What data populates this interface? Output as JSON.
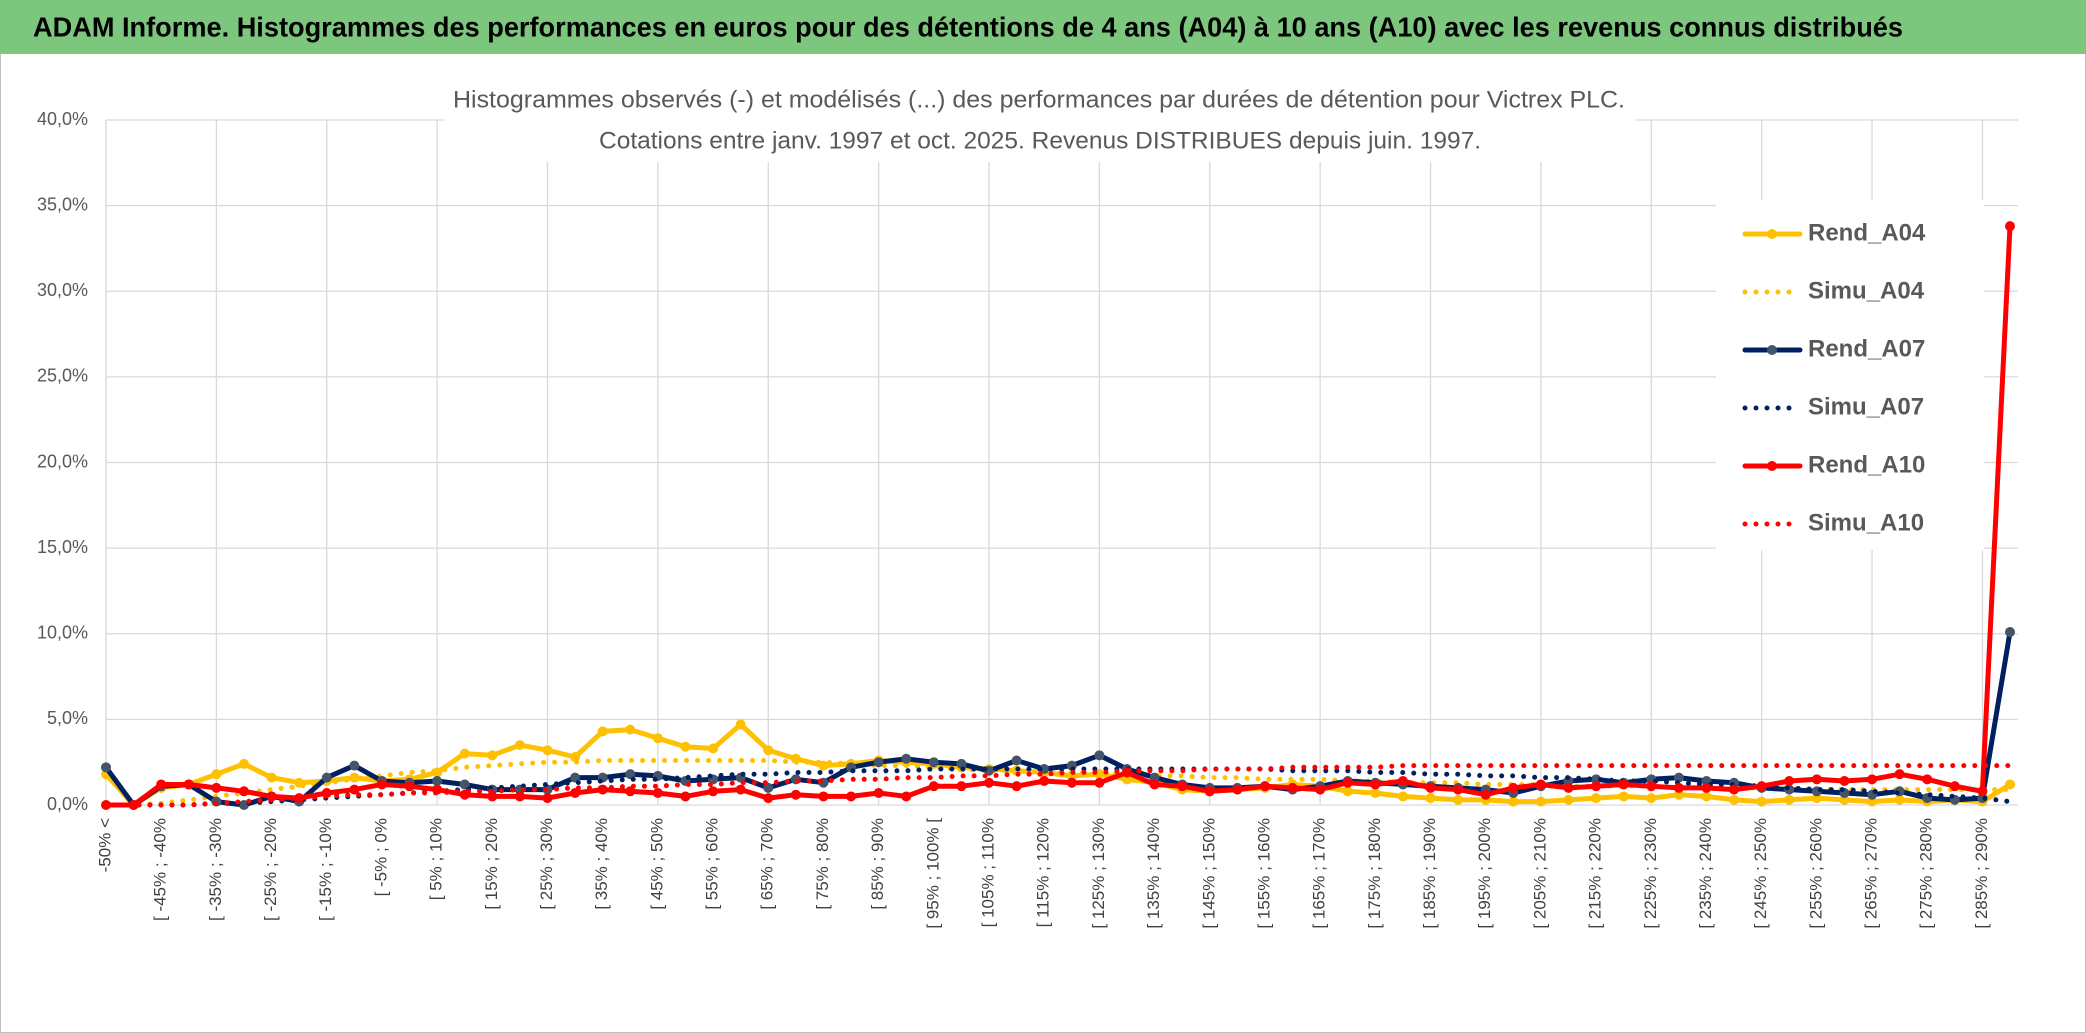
{
  "chart_data": {
    "type": "line",
    "header": "ADAM Informe. Histogrammes des performances en euros pour des détentions de 4 ans (A04) à 10 ans (A10) avec les revenus connus distribués",
    "title": "Histogrammes observés (-) et modélisés (...) des performances par durées de détention pour Victrex PLC.",
    "subtitle": "Cotations entre janv. 1997 et oct. 2025. Revenus DISTRIBUES depuis juin. 1997.",
    "categories": [
      "-50% <",
      null,
      "[ -45% ; -40%",
      null,
      "[ -35% ; -30%",
      null,
      "[ -25% ; -20%",
      null,
      "[ -15% ; -10%",
      null,
      "[ -5% ; 0%",
      null,
      "[ 5% ; 10%",
      null,
      "[ 15% ; 20%",
      null,
      "[ 25% ; 30%",
      null,
      "[ 35% ; 40%",
      null,
      "[ 45% ; 50%",
      null,
      "[ 55% ; 60%",
      null,
      "[ 65% ; 70%",
      null,
      "[ 75% ; 80%",
      null,
      "[ 85% ; 90%",
      null,
      "[ 95% ; 100% [",
      null,
      "[ 105% ; 110%",
      null,
      "[ 115% ; 120%",
      null,
      "[ 125% ; 130%",
      null,
      "[ 135% ; 140%",
      null,
      "[ 145% ; 150%",
      null,
      "[ 155% ; 160%",
      null,
      "[ 165% ; 170%",
      null,
      "[ 175% ; 180%",
      null,
      "[ 185% ; 190%",
      null,
      "[ 195% ; 200%",
      null,
      "[ 205% ; 210%",
      null,
      "[ 215% ; 220%",
      null,
      "[ 225% ; 230%",
      null,
      "[ 235% ; 240%",
      null,
      "[ 245% ; 250%",
      null,
      "[ 255% ; 260%",
      null,
      "[ 265% ; 270%",
      null,
      "[ 275% ; 280%",
      null,
      "[ 285% ; 290%",
      null
    ],
    "series": [
      {
        "name": "Rend_A04",
        "color": "#FFC000",
        "line_style": "solid",
        "marker": true,
        "values": [
          1.8,
          0,
          1.0,
          1.2,
          1.8,
          2.4,
          1.6,
          1.3,
          1.4,
          1.6,
          1.4,
          1.5,
          1.9,
          3.0,
          2.9,
          3.5,
          3.2,
          2.8,
          4.3,
          4.4,
          3.9,
          3.4,
          3.3,
          4.7,
          3.2,
          2.7,
          2.3,
          2.4,
          2.6,
          2.5,
          2.4,
          2.2,
          2.1,
          2.0,
          1.9,
          1.7,
          1.8,
          1.5,
          1.3,
          0.9,
          0.8,
          0.9,
          1.0,
          1.2,
          1.1,
          0.8,
          0.7,
          0.5,
          0.4,
          0.3,
          0.3,
          0.2,
          0.2,
          0.3,
          0.4,
          0.5,
          0.4,
          0.6,
          0.5,
          0.3,
          0.2,
          0.3,
          0.4,
          0.3,
          0.2,
          0.3,
          0.2,
          0.3,
          0.2,
          1.2
        ]
      },
      {
        "name": "Simu_A04",
        "color": "#FFC000",
        "line_style": "dotted",
        "marker": false,
        "values": [
          0,
          0,
          0.1,
          0.3,
          0.5,
          0.7,
          0.9,
          1.1,
          1.3,
          1.5,
          1.7,
          1.9,
          2.0,
          2.2,
          2.3,
          2.4,
          2.5,
          2.5,
          2.6,
          2.6,
          2.6,
          2.6,
          2.6,
          2.6,
          2.6,
          2.5,
          2.5,
          2.4,
          2.3,
          2.3,
          2.2,
          2.1,
          2.0,
          2.0,
          1.9,
          1.9,
          1.8,
          1.8,
          1.7,
          1.7,
          1.6,
          1.6,
          1.5,
          1.5,
          1.5,
          1.4,
          1.4,
          1.3,
          1.3,
          1.3,
          1.2,
          1.2,
          1.2,
          1.1,
          1.1,
          1.1,
          1.1,
          1.0,
          1.0,
          1.0,
          1.0,
          1.0,
          0.9,
          0.9,
          0.9,
          0.9,
          0.9,
          0.9,
          0.9,
          0.9
        ]
      },
      {
        "name": "Rend_A07",
        "color": "#002060",
        "marker_color": "#44546A",
        "line_style": "solid",
        "marker": true,
        "values": [
          2.2,
          0,
          1.1,
          1.2,
          0.2,
          0.0,
          0.5,
          0.2,
          1.6,
          2.3,
          1.4,
          1.3,
          1.4,
          1.2,
          0.9,
          0.9,
          0.9,
          1.6,
          1.6,
          1.8,
          1.7,
          1.4,
          1.5,
          1.6,
          1.0,
          1.5,
          1.3,
          2.2,
          2.5,
          2.7,
          2.5,
          2.4,
          2.0,
          2.6,
          2.1,
          2.3,
          2.9,
          2.1,
          1.6,
          1.2,
          1.0,
          1.0,
          1.1,
          0.9,
          1.1,
          1.4,
          1.3,
          1.2,
          1.1,
          1.0,
          0.9,
          0.7,
          1.1,
          1.4,
          1.5,
          1.3,
          1.5,
          1.6,
          1.4,
          1.3,
          1.0,
          0.9,
          0.8,
          0.7,
          0.6,
          0.8,
          0.4,
          0.3,
          0.4,
          10.1
        ]
      },
      {
        "name": "Simu_A07",
        "color": "#002060",
        "line_style": "dotted",
        "marker": false,
        "values": [
          0,
          0,
          0,
          0,
          0.1,
          0.1,
          0.2,
          0.3,
          0.4,
          0.5,
          0.6,
          0.7,
          0.8,
          0.9,
          1.0,
          1.1,
          1.2,
          1.3,
          1.4,
          1.5,
          1.5,
          1.6,
          1.7,
          1.8,
          1.8,
          1.9,
          1.9,
          2.0,
          2.0,
          2.0,
          2.1,
          2.1,
          2.1,
          2.1,
          2.1,
          2.1,
          2.1,
          2.1,
          2.1,
          2.1,
          2.1,
          2.1,
          2.1,
          2.0,
          2.0,
          2.0,
          1.9,
          1.9,
          1.8,
          1.8,
          1.7,
          1.7,
          1.6,
          1.6,
          1.5,
          1.4,
          1.4,
          1.3,
          1.2,
          1.2,
          1.1,
          1.0,
          0.9,
          0.9,
          0.8,
          0.7,
          0.6,
          0.5,
          0.4,
          0.2
        ]
      },
      {
        "name": "Rend_A10",
        "color": "#FF0000",
        "line_style": "solid",
        "marker": true,
        "values": [
          0,
          0,
          1.2,
          1.2,
          1.0,
          0.8,
          0.5,
          0.4,
          0.7,
          0.9,
          1.2,
          1.1,
          0.9,
          0.6,
          0.5,
          0.5,
          0.4,
          0.7,
          0.9,
          0.8,
          0.7,
          0.5,
          0.8,
          0.9,
          0.4,
          0.6,
          0.5,
          0.5,
          0.7,
          0.5,
          1.1,
          1.1,
          1.3,
          1.1,
          1.4,
          1.3,
          1.3,
          1.9,
          1.2,
          1.1,
          0.8,
          0.9,
          1.1,
          1.0,
          0.9,
          1.3,
          1.2,
          1.4,
          1.0,
          0.9,
          0.6,
          1.0,
          1.2,
          1.0,
          1.1,
          1.2,
          1.1,
          1.0,
          1.0,
          0.9,
          1.1,
          1.4,
          1.5,
          1.4,
          1.5,
          1.8,
          1.5,
          1.1,
          0.8,
          33.8
        ]
      },
      {
        "name": "Simu_A10",
        "color": "#FF0000",
        "line_style": "dotted",
        "marker": false,
        "values": [
          0,
          0,
          0,
          0,
          0.1,
          0.2,
          0.3,
          0.4,
          0.5,
          0.6,
          0.6,
          0.7,
          0.7,
          0.8,
          0.8,
          0.9,
          0.9,
          1.0,
          1.0,
          1.1,
          1.1,
          1.2,
          1.2,
          1.3,
          1.3,
          1.4,
          1.4,
          1.5,
          1.5,
          1.6,
          1.6,
          1.7,
          1.7,
          1.8,
          1.8,
          1.9,
          1.9,
          2.0,
          2.0,
          2.0,
          2.1,
          2.1,
          2.1,
          2.2,
          2.2,
          2.2,
          2.2,
          2.3,
          2.3,
          2.3,
          2.3,
          2.3,
          2.3,
          2.3,
          2.3,
          2.3,
          2.3,
          2.3,
          2.3,
          2.3,
          2.3,
          2.3,
          2.3,
          2.3,
          2.3,
          2.3,
          2.3,
          2.3,
          2.3,
          2.3
        ]
      }
    ],
    "ylim": [
      0,
      40
    ],
    "yticks": [
      {
        "value": 0,
        "label": "0,0%"
      },
      {
        "value": 5,
        "label": "5,0%"
      },
      {
        "value": 10,
        "label": "10,0%"
      },
      {
        "value": 15,
        "label": "15,0%"
      },
      {
        "value": 20,
        "label": "20,0%"
      },
      {
        "value": 25,
        "label": "25,0%"
      },
      {
        "value": 30,
        "label": "30,0%"
      },
      {
        "value": 35,
        "label": "35,0%"
      },
      {
        "value": 40,
        "label": "40,0%"
      }
    ],
    "grid": true,
    "legend": "right"
  }
}
